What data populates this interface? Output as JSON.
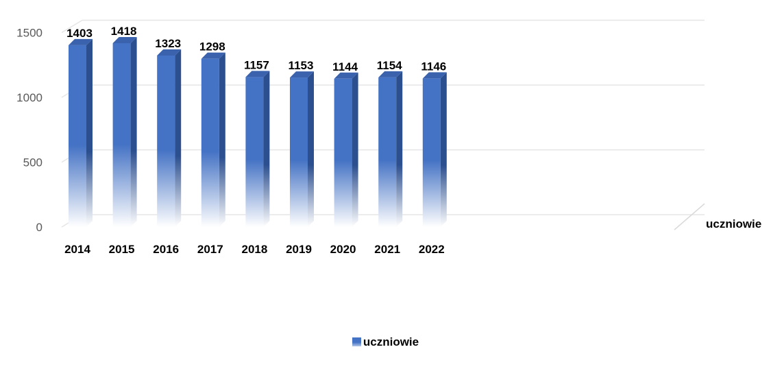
{
  "chart_data": {
    "type": "bar",
    "categories": [
      "2014",
      "2015",
      "2016",
      "2017",
      "2018",
      "2019",
      "2020",
      "2021",
      "2022"
    ],
    "series": [
      {
        "name": "uczniowie",
        "values": [
          1403,
          1418,
          1323,
          1298,
          1157,
          1153,
          1144,
          1154,
          1146
        ]
      }
    ],
    "y_ticks": [
      0,
      500,
      1000,
      1500
    ],
    "ylim": [
      0,
      1500
    ],
    "depth_axis_label": "uczniowie",
    "legend_label": "uczniowie",
    "legend_position": "bottom",
    "style": "3d-column",
    "bar_color": "#4472c4",
    "bar_side_color": "#2c4f8f",
    "grid": true
  }
}
